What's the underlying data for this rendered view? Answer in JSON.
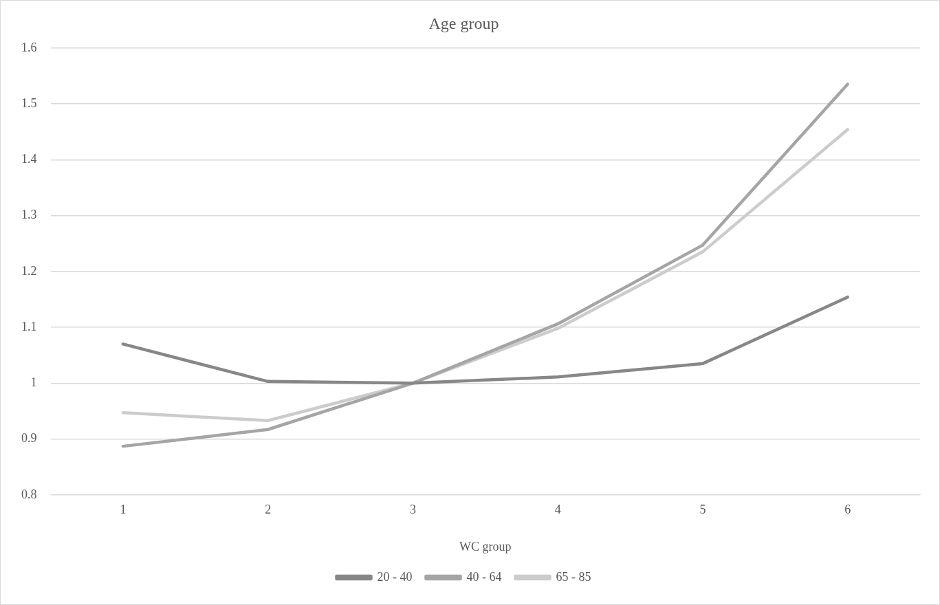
{
  "chart_data": {
    "type": "line",
    "title": "Age group",
    "xlabel": "WC group",
    "categories": [
      "1",
      "2",
      "3",
      "4",
      "5",
      "6"
    ],
    "series": [
      {
        "name": "20 - 40",
        "color": "#878787",
        "values": [
          1.07,
          1.003,
          1.0,
          1.011,
          1.035,
          1.154
        ]
      },
      {
        "name": "40 - 64",
        "color": "#a5a5a5",
        "values": [
          0.887,
          0.917,
          1.0,
          1.106,
          1.247,
          1.535
        ]
      },
      {
        "name": "65 - 85",
        "color": "#cccccc",
        "values": [
          0.947,
          0.933,
          1.0,
          1.098,
          1.235,
          1.454
        ]
      }
    ],
    "ylim": [
      0.8,
      1.6
    ],
    "yticks": [
      0.8,
      0.9,
      1,
      1.1,
      1.2,
      1.3,
      1.4,
      1.5,
      1.6
    ],
    "grid": "y",
    "legend": "bottom",
    "marker": "none",
    "line_style": "solid"
  }
}
